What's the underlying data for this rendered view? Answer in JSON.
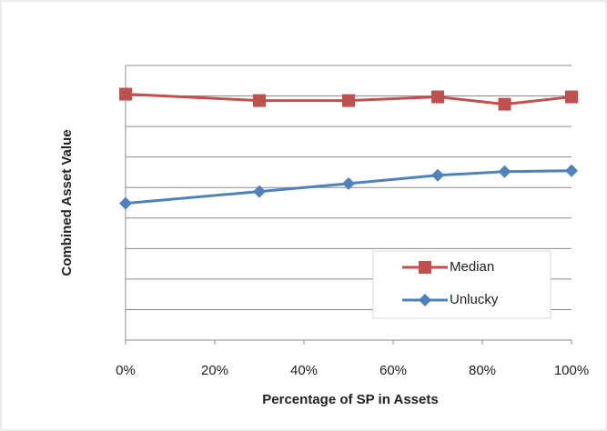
{
  "chart_data": {
    "type": "line",
    "x_label": "Percentage of SP in Assets",
    "y_label": "Combined Asset Value",
    "x": [
      0,
      30,
      50,
      70,
      85,
      100
    ],
    "xlim": [
      0,
      100
    ],
    "xticks": [
      {
        "value": 0,
        "label": "0%"
      },
      {
        "value": 20,
        "label": "20%"
      },
      {
        "value": 40,
        "label": "40%"
      },
      {
        "value": 60,
        "label": "60%"
      },
      {
        "value": 80,
        "label": "80%"
      },
      {
        "value": 100,
        "label": "100%"
      }
    ],
    "ylim": [
      0,
      9
    ],
    "yticks": [
      0,
      1,
      2,
      3,
      4,
      5,
      6,
      7,
      8,
      9
    ],
    "grid": true,
    "legend": "lower right",
    "series": [
      {
        "name": "Median",
        "color": "#c0504d",
        "marker": "square",
        "values": [
          8.06,
          7.85,
          7.85,
          7.97,
          7.73,
          7.97
        ]
      },
      {
        "name": "Unlucky",
        "color": "#4f81bd",
        "marker": "diamond",
        "values": [
          4.48,
          4.87,
          5.13,
          5.4,
          5.52,
          5.55
        ]
      }
    ]
  }
}
